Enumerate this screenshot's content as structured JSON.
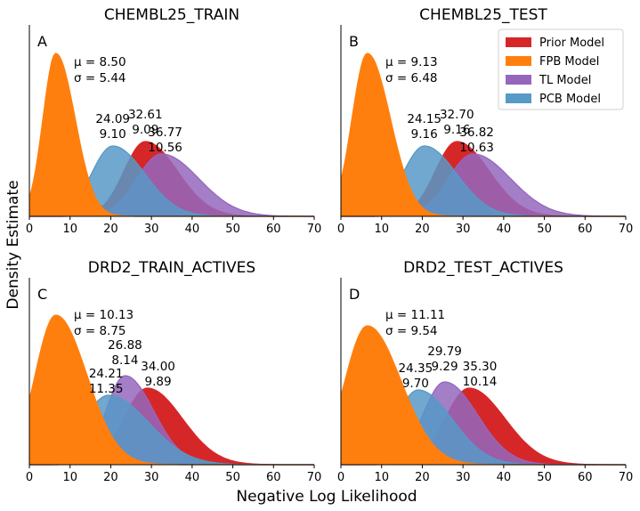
{
  "figure": {
    "ylabel": "Density Estimate",
    "xlabel": "Negative Log Likelihood"
  },
  "legend": {
    "placement": "top-right of panel B",
    "entries": [
      {
        "name": "Prior Model",
        "color": "#d62728"
      },
      {
        "name": "FPB Model",
        "color": "#ff7f0e"
      },
      {
        "name": "TL Model",
        "color": "#9467bd"
      },
      {
        "name": "PCB Model",
        "color": "#5799c7"
      }
    ]
  },
  "chart_data": [
    {
      "type": "area",
      "panel": "A",
      "title": "CHEMBL25_TRAIN",
      "xlim": [
        0,
        70
      ],
      "xticks": [
        0,
        10,
        20,
        30,
        40,
        50,
        60,
        70
      ],
      "stats_label": {
        "mu": "μ = 8.50",
        "sigma": "σ = 5.44"
      },
      "series": [
        {
          "name": "FPB Model",
          "mean": 8.5,
          "sd": 5.44,
          "mode": 6.5,
          "label": null
        },
        {
          "name": "PCB Model",
          "mean": 24.09,
          "sd": 9.1,
          "mode": 20.5,
          "label": {
            "mean": "24.09",
            "sd": "9.10"
          }
        },
        {
          "name": "Prior Model",
          "mean": 32.61,
          "sd": 9.09,
          "mode": 28.5,
          "label": {
            "mean": "32.61",
            "sd": "9.09"
          }
        },
        {
          "name": "TL Model",
          "mean": 36.77,
          "sd": 10.56,
          "mode": 32.5,
          "label": {
            "mean": "36.77",
            "sd": "10.56"
          }
        }
      ]
    },
    {
      "type": "area",
      "panel": "B",
      "title": "CHEMBL25_TEST",
      "xlim": [
        0,
        70
      ],
      "xticks": [
        0,
        10,
        20,
        30,
        40,
        50,
        60,
        70
      ],
      "stats_label": {
        "mu": "μ = 9.13",
        "sigma": "σ = 6.48"
      },
      "series": [
        {
          "name": "FPB Model",
          "mean": 9.13,
          "sd": 6.48,
          "mode": 6.5,
          "label": null
        },
        {
          "name": "PCB Model",
          "mean": 24.15,
          "sd": 9.16,
          "mode": 20.5,
          "label": {
            "mean": "24.15",
            "sd": "9.16"
          }
        },
        {
          "name": "Prior Model",
          "mean": 32.7,
          "sd": 9.16,
          "mode": 28.5,
          "label": {
            "mean": "32.70",
            "sd": "9.16"
          }
        },
        {
          "name": "TL Model",
          "mean": 36.82,
          "sd": 10.63,
          "mode": 32.5,
          "label": {
            "mean": "36.82",
            "sd": "10.63"
          }
        }
      ]
    },
    {
      "type": "area",
      "panel": "C",
      "title": "DRD2_TRAIN_ACTIVES",
      "xlim": [
        0,
        70
      ],
      "xticks": [
        0,
        10,
        20,
        30,
        40,
        50,
        60,
        70
      ],
      "stats_label": {
        "mu": "μ = 10.13",
        "sigma": "σ = 8.75"
      },
      "series": [
        {
          "name": "FPB Model",
          "mean": 10.13,
          "sd": 8.75,
          "mode": 6.5,
          "label": null
        },
        {
          "name": "PCB Model",
          "mean": 24.21,
          "sd": 11.35,
          "mode": 19.5,
          "label": {
            "mean": "24.21",
            "sd": "11.35"
          }
        },
        {
          "name": "TL Model",
          "mean": 26.88,
          "sd": 8.14,
          "mode": 23.5,
          "label": {
            "mean": "26.88",
            "sd": "8.14"
          }
        },
        {
          "name": "Prior Model",
          "mean": 34.0,
          "sd": 9.89,
          "mode": 29.0,
          "label": {
            "mean": "34.00",
            "sd": "9.89"
          }
        }
      ]
    },
    {
      "type": "area",
      "panel": "D",
      "title": "DRD2_TEST_ACTIVES",
      "xlim": [
        0,
        70
      ],
      "xticks": [
        0,
        10,
        20,
        30,
        40,
        50,
        60,
        70
      ],
      "stats_label": {
        "mu": "μ = 11.11",
        "sigma": "σ = 9.54"
      },
      "series": [
        {
          "name": "FPB Model",
          "mean": 11.11,
          "sd": 9.54,
          "mode": 6.5,
          "label": null
        },
        {
          "name": "PCB Model",
          "mean": 24.35,
          "sd": 9.7,
          "mode": 19.0,
          "label": {
            "mean": "24.35",
            "sd": "9.70"
          }
        },
        {
          "name": "TL Model",
          "mean": 29.79,
          "sd": 9.29,
          "mode": 25.5,
          "label": {
            "mean": "29.79",
            "sd": "9.29"
          }
        },
        {
          "name": "Prior Model",
          "mean": 35.3,
          "sd": 10.14,
          "mode": 31.5,
          "label": {
            "mean": "35.30",
            "sd": "10.14"
          }
        }
      ]
    }
  ]
}
